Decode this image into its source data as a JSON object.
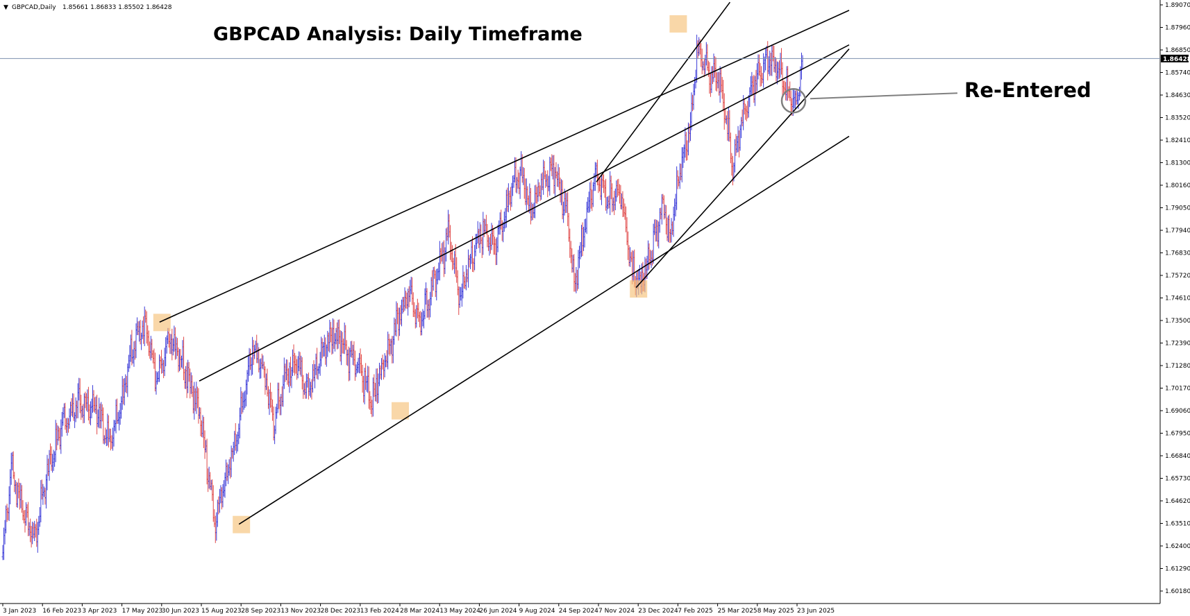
{
  "header": {
    "symbol": "GBPCAD,Daily",
    "ohlc": "1.85661 1.86833 1.85502 1.86428"
  },
  "title": "GBPCAD Analysis: Daily Timeframe",
  "annotation": "Re-Entered",
  "current_price_label": "1.86428",
  "colors": {
    "up_bar": "#3c3cd8",
    "down_bar": "#e04848",
    "trendline": "#000000",
    "highlight": "#f6c27a",
    "current_line": "#7c8fae",
    "current_tag_bg": "#000000",
    "circle": "#7f7f7f"
  },
  "chart_data": {
    "type": "ohlc",
    "title": "GBPCAD Analysis: Daily Timeframe",
    "ylim": [
      1.603,
      1.893
    ],
    "y_ticks": [
      "1.89070",
      "1.87960",
      "1.86850",
      "1.85740",
      "1.84630",
      "1.83520",
      "1.82410",
      "1.81300",
      "1.80160",
      "1.79050",
      "1.77940",
      "1.76830",
      "1.75720",
      "1.74610",
      "1.73500",
      "1.72390",
      "1.71280",
      "1.70170",
      "1.69060",
      "1.67950",
      "1.66840",
      "1.65730",
      "1.64620",
      "1.63510",
      "1.62400",
      "1.61290",
      "1.60180"
    ],
    "x_ticks": [
      "3 Jan 2023",
      "16 Feb 2023",
      "3 Apr 2023",
      "17 May 2023",
      "30 Jun 2023",
      "15 Aug 2023",
      "28 Sep 2023",
      "13 Nov 2023",
      "28 Dec 2023",
      "13 Feb 2024",
      "28 Mar 2024",
      "13 May 2024",
      "26 Jun 2024",
      "9 Aug 2024",
      "24 Sep 2024",
      "7 Nov 2024",
      "23 Dec 2024",
      "7 Feb 2025",
      "25 Mar 2025",
      "8 May 2025",
      "23 Jun 2025"
    ],
    "current_price": 1.86428,
    "anchors": [
      [
        0,
        1.62
      ],
      [
        8,
        1.662
      ],
      [
        20,
        1.64
      ],
      [
        30,
        1.628
      ],
      [
        42,
        1.66
      ],
      [
        56,
        1.685
      ],
      [
        72,
        1.695
      ],
      [
        88,
        1.692
      ],
      [
        100,
        1.675
      ],
      [
        110,
        1.69
      ],
      [
        124,
        1.725
      ],
      [
        135,
        1.733
      ],
      [
        146,
        1.705
      ],
      [
        158,
        1.729
      ],
      [
        172,
        1.711
      ],
      [
        186,
        1.69
      ],
      [
        196,
        1.655
      ],
      [
        200,
        1.635
      ],
      [
        212,
        1.66
      ],
      [
        224,
        1.685
      ],
      [
        236,
        1.722
      ],
      [
        248,
        1.708
      ],
      [
        256,
        1.683
      ],
      [
        266,
        1.708
      ],
      [
        278,
        1.715
      ],
      [
        288,
        1.7
      ],
      [
        304,
        1.722
      ],
      [
        312,
        1.73
      ],
      [
        324,
        1.72
      ],
      [
        338,
        1.712
      ],
      [
        348,
        1.695
      ],
      [
        362,
        1.718
      ],
      [
        376,
        1.74
      ],
      [
        384,
        1.75
      ],
      [
        394,
        1.735
      ],
      [
        402,
        1.745
      ],
      [
        412,
        1.762
      ],
      [
        422,
        1.778
      ],
      [
        432,
        1.745
      ],
      [
        442,
        1.765
      ],
      [
        452,
        1.78
      ],
      [
        466,
        1.772
      ],
      [
        482,
        1.802
      ],
      [
        490,
        1.81
      ],
      [
        498,
        1.79
      ],
      [
        510,
        1.803
      ],
      [
        522,
        1.81
      ],
      [
        534,
        1.785
      ],
      [
        540,
        1.752
      ],
      [
        548,
        1.775
      ],
      [
        560,
        1.808
      ],
      [
        572,
        1.795
      ],
      [
        584,
        1.798
      ],
      [
        594,
        1.76
      ],
      [
        602,
        1.752
      ],
      [
        614,
        1.77
      ],
      [
        624,
        1.793
      ],
      [
        630,
        1.775
      ],
      [
        640,
        1.81
      ],
      [
        650,
        1.83
      ],
      [
        656,
        1.868
      ],
      [
        666,
        1.858
      ],
      [
        676,
        1.855
      ],
      [
        684,
        1.835
      ],
      [
        690,
        1.808
      ],
      [
        700,
        1.838
      ],
      [
        712,
        1.855
      ],
      [
        724,
        1.865
      ],
      [
        734,
        1.858
      ],
      [
        744,
        1.847
      ],
      [
        750,
        1.842
      ],
      [
        754,
        1.856
      ],
      [
        756,
        1.864
      ]
    ],
    "trendlines": [
      {
        "from": [
          "30 Jun 2023",
          1.7345
        ],
        "to": [
          "23 Jun 2025",
          1.888
        ]
      },
      {
        "from": [
          "15 Aug 2023",
          1.7055
        ],
        "to": [
          "23 Jun 2025",
          1.871
        ]
      },
      {
        "from": [
          "28 Sep 2023",
          1.635
        ],
        "to": [
          "23 Jun 2025",
          1.826
        ]
      },
      {
        "from": [
          "7 Nov 2024",
          1.8035
        ],
        "to": [
          "7 Feb 2025",
          1.892
        ]
      },
      {
        "from": [
          "23 Dec 2024",
          1.7515
        ],
        "to": [
          "23 Jun 2025",
          1.869
        ]
      }
    ],
    "highlights": [
      {
        "x": "30 Jun 2023",
        "y": 1.7345
      },
      {
        "x": "28 Sep 2023",
        "y": 1.635
      },
      {
        "x": "28 Mar 2024",
        "y": 1.691
      },
      {
        "x": "23 Dec 2024",
        "y": 1.751
      },
      {
        "x": "7 Feb 2025",
        "y": 1.8815
      }
    ],
    "re_entry_point": {
      "x": "23 Jun 2025",
      "y": 1.8435
    }
  }
}
